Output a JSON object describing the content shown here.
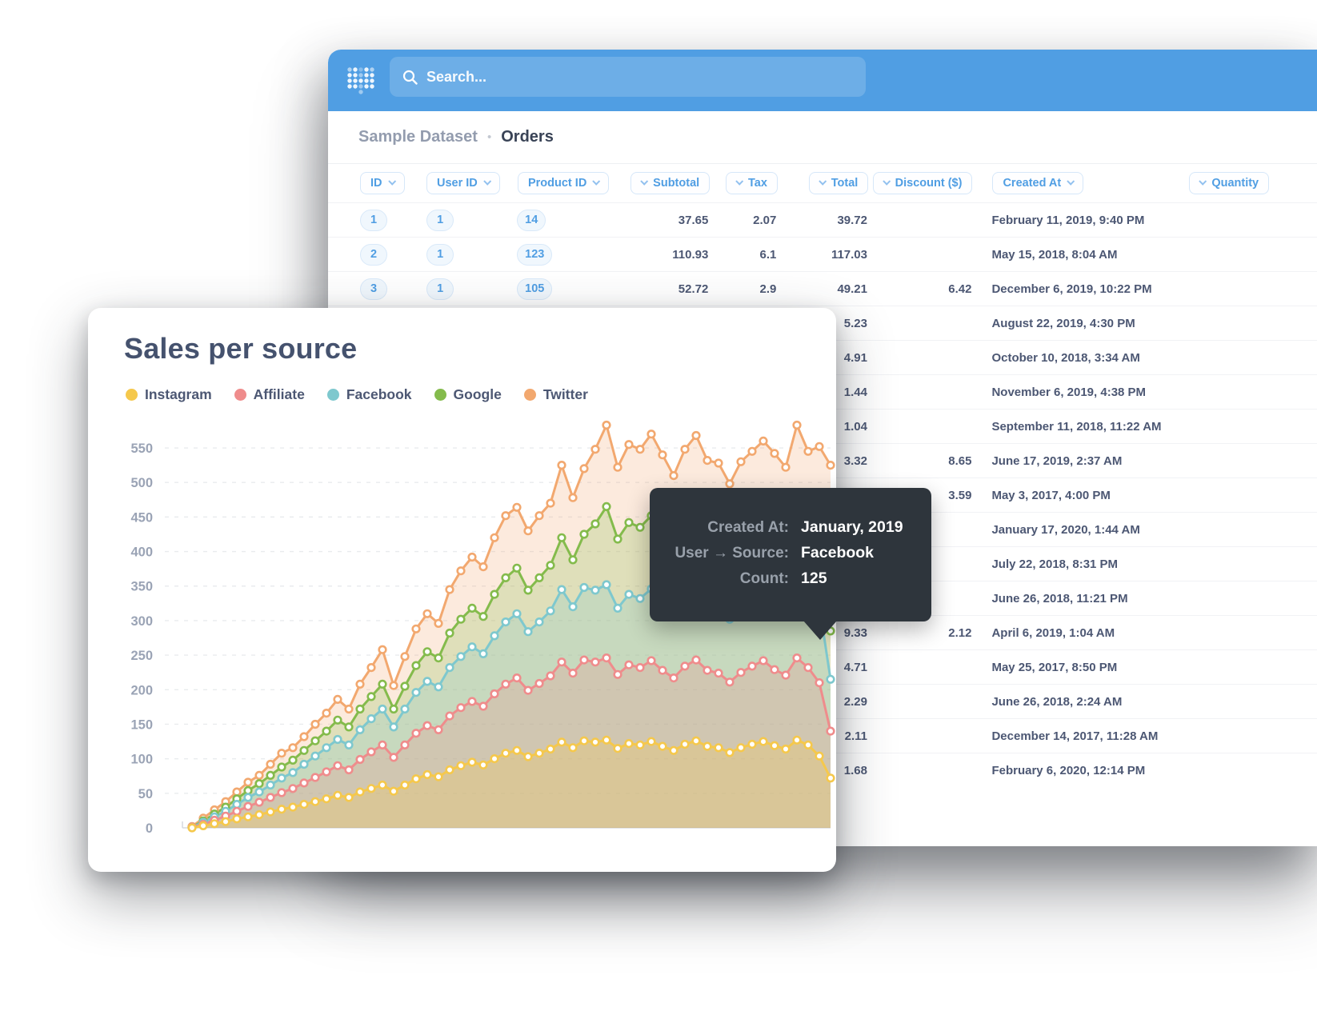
{
  "app": {
    "brand_color": "#509ee3",
    "search_placeholder": "Search..."
  },
  "breadcrumb": {
    "dataset": "Sample Dataset",
    "separator": "•",
    "table": "Orders"
  },
  "table": {
    "columns": [
      {
        "label": "ID"
      },
      {
        "label": "User ID"
      },
      {
        "label": "Product ID"
      },
      {
        "label": "Subtotal"
      },
      {
        "label": "Tax"
      },
      {
        "label": "Total"
      },
      {
        "label": "Discount ($)"
      },
      {
        "label": "Created At"
      },
      {
        "label": "Quantity"
      }
    ],
    "rows": [
      {
        "id": "1",
        "user_id": "1",
        "product_id": "14",
        "subtotal": "37.65",
        "tax": "2.07",
        "total": "39.72",
        "discount": "",
        "created_at": "February 11, 2019, 9:40 PM"
      },
      {
        "id": "2",
        "user_id": "1",
        "product_id": "123",
        "subtotal": "110.93",
        "tax": "6.1",
        "total": "117.03",
        "discount": "",
        "created_at": "May 15, 2018, 8:04 AM"
      },
      {
        "id": "3",
        "user_id": "1",
        "product_id": "105",
        "subtotal": "52.72",
        "tax": "2.9",
        "total": "49.21",
        "discount": "6.42",
        "created_at": "December 6, 2019, 10:22 PM"
      },
      {
        "id": "",
        "user_id": "",
        "product_id": "",
        "subtotal": "",
        "tax": "",
        "total": "5.23",
        "discount": "",
        "created_at": "August 22, 2019, 4:30 PM"
      },
      {
        "id": "",
        "user_id": "",
        "product_id": "",
        "subtotal": "",
        "tax": "",
        "total": "4.91",
        "discount": "",
        "created_at": "October 10, 2018, 3:34 AM"
      },
      {
        "id": "",
        "user_id": "",
        "product_id": "",
        "subtotal": "",
        "tax": "",
        "total": "1.44",
        "discount": "",
        "created_at": "November 6, 2019, 4:38 PM"
      },
      {
        "id": "",
        "user_id": "",
        "product_id": "",
        "subtotal": "",
        "tax": "",
        "total": "1.04",
        "discount": "",
        "created_at": "September 11, 2018, 11:22 AM"
      },
      {
        "id": "",
        "user_id": "",
        "product_id": "",
        "subtotal": "",
        "tax": "",
        "total": "3.32",
        "discount": "8.65",
        "created_at": "June 17, 2019, 2:37 AM"
      },
      {
        "id": "",
        "user_id": "",
        "product_id": "",
        "subtotal": "",
        "tax": "",
        "total": "",
        "discount": "3.59",
        "created_at": "May 3, 2017, 4:00 PM"
      },
      {
        "id": "",
        "user_id": "",
        "product_id": "",
        "subtotal": "",
        "tax": "",
        "total": "",
        "discount": "",
        "created_at": "January 17, 2020, 1:44 AM"
      },
      {
        "id": "",
        "user_id": "",
        "product_id": "",
        "subtotal": "",
        "tax": "",
        "total": "",
        "discount": "",
        "created_at": "July 22, 2018, 8:31 PM"
      },
      {
        "id": "",
        "user_id": "",
        "product_id": "",
        "subtotal": "",
        "tax": "",
        "total": "",
        "discount": "",
        "created_at": "June 26, 2018, 11:21 PM"
      },
      {
        "id": "",
        "user_id": "",
        "product_id": "",
        "subtotal": "",
        "tax": "",
        "total": "9.33",
        "discount": "2.12",
        "created_at": "April 6, 2019, 1:04 AM"
      },
      {
        "id": "",
        "user_id": "",
        "product_id": "",
        "subtotal": "",
        "tax": "",
        "total": "4.71",
        "discount": "",
        "created_at": "May 25, 2017, 8:50 PM"
      },
      {
        "id": "",
        "user_id": "",
        "product_id": "",
        "subtotal": "",
        "tax": "",
        "total": "2.29",
        "discount": "",
        "created_at": "June 26, 2018, 2:24 AM"
      },
      {
        "id": "",
        "user_id": "",
        "product_id": "",
        "subtotal": "",
        "tax": "",
        "total": "2.11",
        "discount": "",
        "created_at": "December 14, 2017, 11:28 AM"
      },
      {
        "id": "",
        "user_id": "",
        "product_id": "",
        "subtotal": "",
        "tax": "",
        "total": "1.68",
        "discount": "",
        "created_at": "February 6, 2020, 12:14 PM"
      }
    ]
  },
  "chart_card": {
    "title": "Sales per source",
    "legend": [
      {
        "label": "Instagram",
        "color": "#F5C84C"
      },
      {
        "label": "Affiliate",
        "color": "#EF8C8C"
      },
      {
        "label": "Facebook",
        "color": "#7EC8CE"
      },
      {
        "label": "Google",
        "color": "#84BB4C"
      },
      {
        "label": "Twitter",
        "color": "#F2A86F"
      }
    ]
  },
  "chart_data": {
    "type": "area",
    "title": "Sales per source",
    "xlabel": "",
    "ylabel": "",
    "x_axis_labels_visible": false,
    "ylim": [
      0,
      600
    ],
    "yticks": [
      0,
      50,
      100,
      150,
      200,
      250,
      300,
      350,
      400,
      450,
      500,
      550
    ],
    "grid": "dashed-horizontal",
    "legend_position": "top-left",
    "marker": "open-circle",
    "series": [
      {
        "name": "Twitter",
        "color": "#F2A86F",
        "values": [
          2,
          14,
          26,
          38,
          52,
          66,
          76,
          92,
          108,
          116,
          132,
          150,
          166,
          186,
          172,
          208,
          232,
          258,
          206,
          248,
          288,
          310,
          296,
          345,
          372,
          392,
          378,
          420,
          452,
          464,
          430,
          452,
          470,
          525,
          478,
          520,
          548,
          583,
          522,
          555,
          548,
          570,
          540,
          510,
          548,
          568,
          532,
          528,
          498,
          530,
          545,
          560,
          542,
          522,
          583,
          545,
          552,
          525
        ]
      },
      {
        "name": "Google",
        "color": "#84BB4C",
        "values": [
          1,
          10,
          20,
          30,
          42,
          54,
          64,
          76,
          88,
          98,
          112,
          126,
          140,
          156,
          146,
          172,
          190,
          208,
          172,
          205,
          235,
          255,
          246,
          282,
          302,
          318,
          306,
          338,
          362,
          376,
          344,
          362,
          380,
          420,
          388,
          425,
          440,
          465,
          418,
          442,
          435,
          452,
          430,
          408,
          438,
          455,
          428,
          420,
          398,
          422,
          438,
          452,
          430,
          415,
          462,
          440,
          448,
          285
        ]
      },
      {
        "name": "Facebook",
        "color": "#7EC8CE",
        "values": [
          1,
          8,
          16,
          24,
          34,
          44,
          52,
          62,
          72,
          80,
          92,
          104,
          116,
          128,
          120,
          142,
          158,
          172,
          146,
          172,
          196,
          212,
          204,
          232,
          248,
          262,
          252,
          278,
          298,
          310,
          284,
          298,
          314,
          345,
          320,
          348,
          344,
          352,
          318,
          338,
          332,
          346,
          326,
          310,
          334,
          348,
          326,
          320,
          302,
          322,
          334,
          346,
          328,
          316,
          352,
          332,
          322,
          215
        ]
      },
      {
        "name": "Affiliate",
        "color": "#EF8C8C",
        "values": [
          1,
          5,
          11,
          17,
          24,
          31,
          37,
          44,
          51,
          57,
          65,
          73,
          81,
          90,
          84,
          99,
          110,
          120,
          102,
          120,
          137,
          148,
          142,
          162,
          174,
          183,
          176,
          194,
          208,
          217,
          199,
          209,
          220,
          240,
          224,
          243,
          240,
          246,
          222,
          236,
          232,
          242,
          228,
          217,
          234,
          243,
          228,
          224,
          211,
          225,
          234,
          242,
          229,
          221,
          246,
          232,
          210,
          140
        ]
      },
      {
        "name": "Instagram",
        "color": "#F5C84C",
        "values": [
          0,
          3,
          6,
          9,
          13,
          16,
          19,
          23,
          27,
          30,
          34,
          38,
          42,
          47,
          44,
          52,
          57,
          62,
          53,
          62,
          71,
          77,
          74,
          84,
          90,
          95,
          91,
          100,
          108,
          112,
          103,
          108,
          114,
          124,
          116,
          126,
          124,
          127,
          115,
          122,
          120,
          125,
          118,
          112,
          121,
          126,
          118,
          116,
          109,
          116,
          121,
          125,
          119,
          114,
          127,
          120,
          104,
          72
        ]
      }
    ],
    "tooltip_annotation": {
      "created_at": "January, 2019",
      "source": "Facebook",
      "count": 125
    }
  },
  "tooltip": {
    "rows": [
      {
        "label": "Created At:",
        "value": "January, 2019"
      },
      {
        "label": "User → Source:",
        "value": "Facebook"
      },
      {
        "label": "Count:",
        "value": "125"
      }
    ]
  }
}
